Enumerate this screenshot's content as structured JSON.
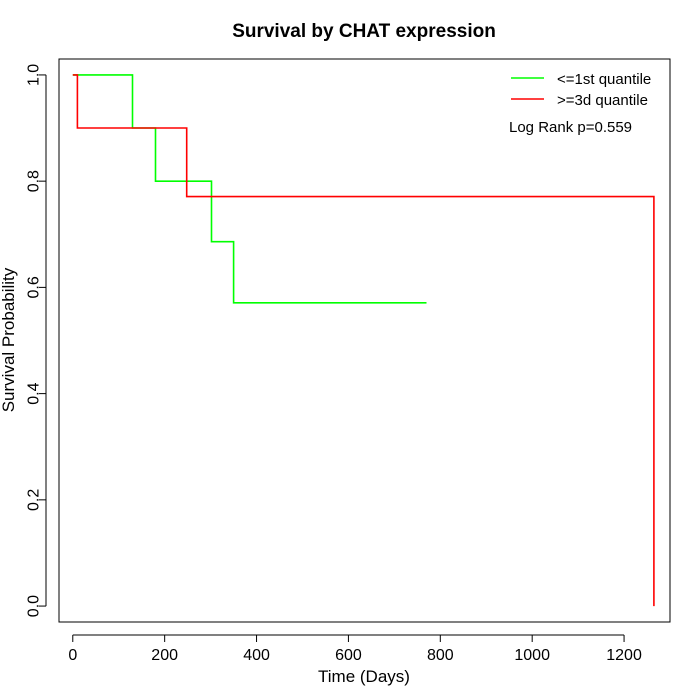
{
  "chart_data": {
    "type": "line",
    "title": "Survival by CHAT expression",
    "xlabel": "Time (Days)",
    "ylabel": "Survival Probability",
    "xlim": [
      -30,
      1300
    ],
    "ylim": [
      -0.03,
      1.03
    ],
    "xticks": [
      0,
      200,
      400,
      600,
      800,
      1000,
      1200
    ],
    "yticks": [
      0.0,
      0.2,
      0.4,
      0.6,
      0.8,
      1.0
    ],
    "xtick_labels": [
      "0",
      "200",
      "400",
      "600",
      "800",
      "1000",
      "1200"
    ],
    "ytick_labels": [
      "0.0",
      "0.2",
      "0.4",
      "0.6",
      "0.8",
      "1.0"
    ],
    "step": true,
    "grid": false,
    "legend_position": "top-right",
    "annotation": "Log Rank p=0.559",
    "series": [
      {
        "name": "<=1st quantile",
        "color": "#00ff00",
        "x": [
          0,
          130,
          130,
          180,
          180,
          302,
          302,
          350,
          350,
          770
        ],
        "y": [
          1.0,
          1.0,
          0.9,
          0.9,
          0.8,
          0.8,
          0.686,
          0.686,
          0.571,
          0.571
        ]
      },
      {
        "name": ">=3d quantile",
        "color": "#ff0000",
        "x": [
          0,
          10,
          10,
          248,
          248,
          1265,
          1265
        ],
        "y": [
          1.0,
          1.0,
          0.9,
          0.9,
          0.771,
          0.771,
          0.0
        ]
      }
    ]
  }
}
